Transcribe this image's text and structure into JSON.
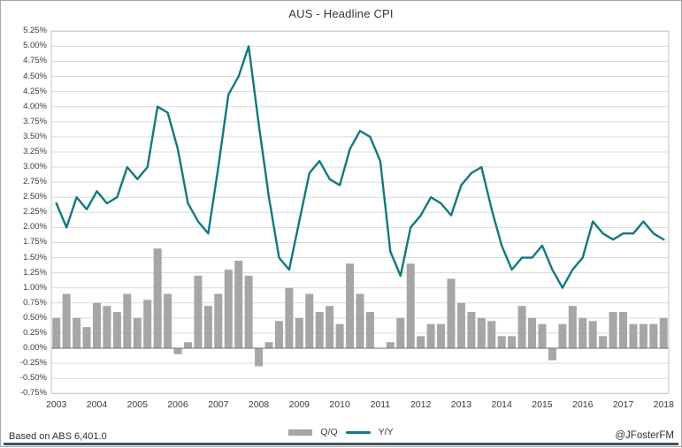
{
  "title": "AUS - Headline CPI",
  "footer": {
    "source": "Based on ABS 6,401.0",
    "handle": "@JFosterFM"
  },
  "chart_data": {
    "type": "combo",
    "title": "AUS - Headline CPI",
    "xlabel": "",
    "ylabel": "",
    "ylim": [
      -0.75,
      5.25
    ],
    "y_tick_step": 0.25,
    "grid": true,
    "legend_position": "bottom-center",
    "y_tick_labels": [
      "5.25%",
      "5.00%",
      "4.75%",
      "4.50%",
      "4.25%",
      "4.00%",
      "3.75%",
      "3.50%",
      "3.25%",
      "3.00%",
      "2.75%",
      "2.50%",
      "2.25%",
      "2.00%",
      "1.75%",
      "1.50%",
      "1.25%",
      "1.00%",
      "0.75%",
      "0.50%",
      "0.25%",
      "0.00%",
      "-0.25%",
      "-0.50%",
      "-0.75%"
    ],
    "x_year_labels": [
      "2003",
      "2004",
      "2005",
      "2006",
      "2007",
      "2008",
      "2009",
      "2010",
      "2011",
      "2012",
      "2013",
      "2014",
      "2015",
      "2016",
      "2017",
      "2018"
    ],
    "categories": [
      "2003Q4",
      "2004Q1",
      "2004Q2",
      "2004Q3",
      "2004Q4",
      "2005Q1",
      "2005Q2",
      "2005Q3",
      "2005Q4",
      "2006Q1",
      "2006Q2",
      "2006Q3",
      "2006Q4",
      "2007Q1",
      "2007Q2",
      "2007Q3",
      "2007Q4",
      "2008Q1",
      "2008Q2",
      "2008Q3",
      "2008Q4",
      "2009Q1",
      "2009Q2",
      "2009Q3",
      "2009Q4",
      "2010Q1",
      "2010Q2",
      "2010Q3",
      "2010Q4",
      "2011Q1",
      "2011Q2",
      "2011Q3",
      "2011Q4",
      "2012Q1",
      "2012Q2",
      "2012Q3",
      "2012Q4",
      "2013Q1",
      "2013Q2",
      "2013Q3",
      "2013Q4",
      "2014Q1",
      "2014Q2",
      "2014Q3",
      "2014Q4",
      "2015Q1",
      "2015Q2",
      "2015Q3",
      "2015Q4",
      "2016Q1",
      "2016Q2",
      "2016Q3",
      "2016Q4",
      "2017Q1",
      "2017Q2",
      "2017Q3",
      "2017Q4",
      "2018Q1",
      "2018Q2",
      "2018Q3",
      "2018Q4"
    ],
    "series": [
      {
        "name": "Q/Q",
        "type": "bar",
        "values": [
          0.5,
          0.9,
          0.5,
          0.35,
          0.75,
          0.7,
          0.6,
          0.9,
          0.5,
          0.8,
          1.65,
          0.9,
          -0.1,
          0.1,
          1.2,
          0.7,
          0.9,
          1.3,
          1.45,
          1.2,
          -0.3,
          0.1,
          0.45,
          1.0,
          0.5,
          0.9,
          0.6,
          0.7,
          0.4,
          1.4,
          0.9,
          0.6,
          0.0,
          0.1,
          0.5,
          1.4,
          0.2,
          0.4,
          0.4,
          1.15,
          0.75,
          0.6,
          0.5,
          0.45,
          0.2,
          0.2,
          0.7,
          0.5,
          0.4,
          -0.2,
          0.4,
          0.7,
          0.5,
          0.45,
          0.2,
          0.6,
          0.6,
          0.4,
          0.4,
          0.4,
          0.5
        ]
      },
      {
        "name": "Y/Y",
        "type": "line",
        "values": [
          2.4,
          2.0,
          2.5,
          2.3,
          2.6,
          2.4,
          2.5,
          3.0,
          2.8,
          3.0,
          4.0,
          3.9,
          3.3,
          2.4,
          2.1,
          1.9,
          3.0,
          4.2,
          4.5,
          5.0,
          3.7,
          2.5,
          1.5,
          1.3,
          2.1,
          2.9,
          3.1,
          2.8,
          2.7,
          3.3,
          3.6,
          3.5,
          3.1,
          1.6,
          1.2,
          2.0,
          2.2,
          2.5,
          2.4,
          2.2,
          2.7,
          2.9,
          3.0,
          2.3,
          1.7,
          1.3,
          1.5,
          1.5,
          1.7,
          1.3,
          1.0,
          1.3,
          1.5,
          2.1,
          1.9,
          1.8,
          1.9,
          1.9,
          2.1,
          1.9,
          1.8
        ]
      }
    ],
    "colors": {
      "bar": "#a6a6a6",
      "line": "#11797e",
      "grid": "#dadada",
      "zero_axis": "#7f7f7f",
      "plot_border": "#c6c6c6",
      "footer_rule": "#3f5360"
    }
  }
}
